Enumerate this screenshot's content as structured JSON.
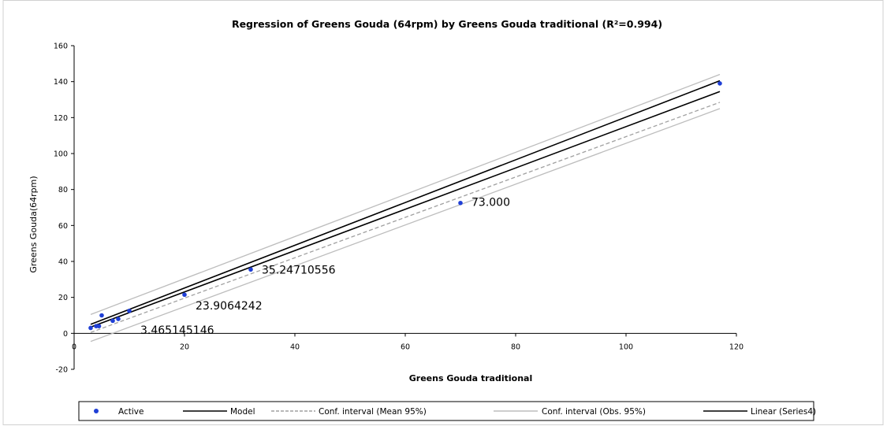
{
  "chart_data": {
    "type": "scatter",
    "title": "Regression of Greens Gouda (64rpm) by Greens Gouda traditional (R²=0.994)",
    "xlabel": "Greens Gouda traditional",
    "ylabel": "Greens Gouda(64rpm)",
    "xlim": [
      0,
      120
    ],
    "ylim": [
      -20,
      160
    ],
    "x_ticks": [
      "0",
      "20",
      "40",
      "60",
      "80",
      "100",
      "120"
    ],
    "y_ticks": [
      "-20",
      "0",
      "20",
      "40",
      "60",
      "80",
      "100",
      "120",
      "140",
      "160"
    ],
    "grid": false,
    "legend_position": "bottom",
    "series": [
      {
        "name": "Active",
        "kind": "points",
        "color": "#1f3fd6",
        "x": [
          3,
          4,
          4.5,
          5,
          7,
          8,
          10,
          20,
          32,
          70,
          117
        ],
        "y": [
          3,
          4,
          4,
          10,
          7,
          8,
          12.5,
          21.5,
          35.5,
          72.5,
          139
        ]
      },
      {
        "name": "Model",
        "kind": "line",
        "color": "#000000",
        "dash": "solid",
        "x": [
          3,
          117
        ],
        "y": [
          3.5,
          134.5
        ]
      },
      {
        "name": "Conf. interval (Mean 95%)",
        "kind": "line",
        "color": "#a0a0a0",
        "dash": "dashed",
        "x": [
          3,
          117
        ],
        "y": [
          0.5,
          128.5
        ]
      },
      {
        "name": "Conf. interval (Obs. 95%)",
        "kind": "line",
        "color": "#bdbdbd",
        "dash": "solid",
        "x": [
          3,
          117
        ],
        "y": [
          10.5,
          144
        ]
      },
      {
        "name": "Conf. interval (Obs. 95%)",
        "kind": "line",
        "color": "#bdbdbd",
        "dash": "solid",
        "x": [
          3,
          117
        ],
        "y": [
          -4.5,
          125
        ],
        "legend": false
      },
      {
        "name": "Linear (Series4)",
        "kind": "line",
        "color": "#000000",
        "dash": "solid",
        "x": [
          3,
          117
        ],
        "y": [
          5,
          140.5
        ]
      }
    ],
    "annotations": [
      {
        "text": "73.000",
        "x": 72,
        "y": 73
      },
      {
        "text": "35.24710556",
        "x": 34,
        "y": 35.5
      },
      {
        "text": "23.9064242",
        "x": 22,
        "y": 15.5
      },
      {
        "text": "3.465145146",
        "x": 12,
        "y": 2
      }
    ]
  }
}
